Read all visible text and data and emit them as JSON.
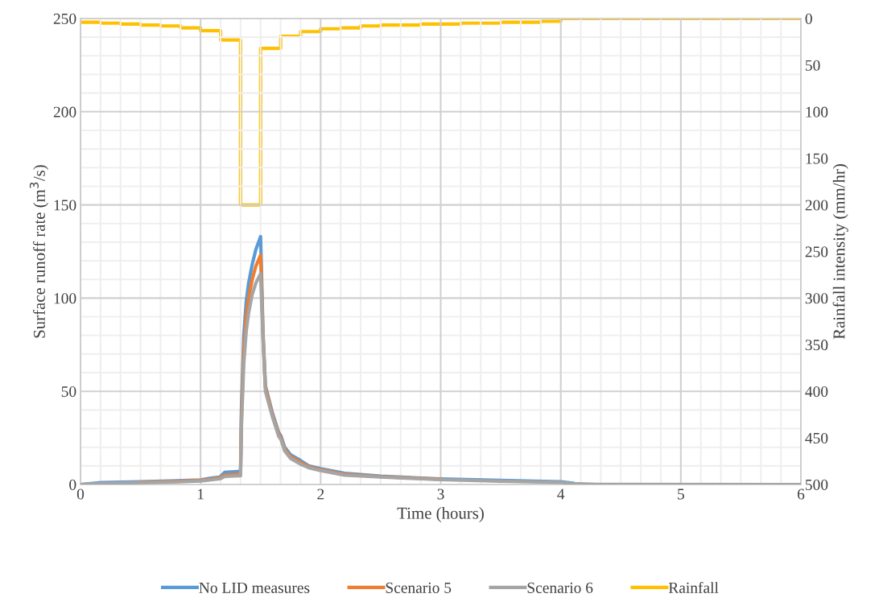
{
  "chart_data": {
    "type": "line",
    "xlabel": "Time (hours)",
    "ylabel": "Surface runoff rate (m$^{3}$/s)",
    "y2label": "Rainfall intensity (mm/hr)",
    "xlim": [
      0,
      6
    ],
    "xticks": [
      0,
      1,
      2,
      3,
      4,
      5,
      6
    ],
    "ylim": [
      0,
      250
    ],
    "yticks": [
      0,
      50,
      100,
      150,
      200,
      250
    ],
    "y2lim": [
      500,
      0
    ],
    "y2ticks": [
      0,
      50,
      100,
      150,
      200,
      250,
      300,
      350,
      400,
      450,
      500
    ],
    "grid": true,
    "legend": "bottom",
    "marker": "none",
    "line_style": "solid",
    "series": [
      {
        "name": "No LID measures",
        "color": "#5b9bd5",
        "x": [
          0,
          0.17,
          0.5,
          0.8,
          1.0,
          1.1,
          1.16,
          1.2,
          1.32,
          1.333,
          1.34,
          1.36,
          1.38,
          1.4,
          1.43,
          1.46,
          1.5,
          1.52,
          1.54,
          1.6,
          1.65,
          1.67,
          1.7,
          1.75,
          1.83,
          1.9,
          2.0,
          2.2,
          2.5,
          3.0,
          3.5,
          4.0,
          4.1
        ],
        "values": [
          0,
          1,
          1.5,
          2,
          2.5,
          3.5,
          4,
          6.5,
          7,
          7,
          40,
          80,
          98,
          108,
          118,
          126,
          133,
          82,
          53,
          38,
          28,
          26,
          20,
          16,
          13,
          10,
          8.5,
          6,
          4.5,
          3,
          2.2,
          1.5,
          0.7
        ]
      },
      {
        "name": "Scenario 5",
        "color": "#ed7d31",
        "x": [
          0.5,
          0.8,
          1.0,
          1.1,
          1.16,
          1.2,
          1.32,
          1.333,
          1.34,
          1.36,
          1.38,
          1.4,
          1.43,
          1.46,
          1.5,
          1.52,
          1.54,
          1.6,
          1.65,
          1.67,
          1.7,
          1.75,
          1.83,
          1.9,
          2.0,
          2.2,
          2.5,
          3.0
        ],
        "values": [
          1.3,
          1.7,
          2.2,
          3,
          3.5,
          5,
          5.5,
          5.5,
          35,
          72,
          90,
          100,
          110,
          117,
          123,
          80,
          52,
          37,
          27,
          25,
          19,
          15,
          12,
          9.5,
          8,
          5.5,
          4.2,
          2.8
        ]
      },
      {
        "name": "Scenario 6",
        "color": "#a5a5a5",
        "x": [
          0,
          0.17,
          0.5,
          0.8,
          1.0,
          1.1,
          1.16,
          1.2,
          1.32,
          1.333,
          1.34,
          1.36,
          1.38,
          1.4,
          1.43,
          1.46,
          1.5,
          1.52,
          1.54,
          1.6,
          1.65,
          1.67,
          1.7,
          1.75,
          1.83,
          1.9,
          2.0,
          2.2,
          2.5,
          3.0,
          3.5,
          4.0,
          4.1,
          4.3,
          6
        ],
        "values": [
          0,
          0.6,
          1,
          1.4,
          1.9,
          2.6,
          3,
          4.3,
          4.7,
          4.7,
          30,
          65,
          82,
          92,
          102,
          108,
          113,
          78,
          50,
          36,
          26,
          24,
          18,
          14,
          11,
          9,
          7.5,
          5,
          4,
          2.6,
          1.8,
          1.1,
          0.5,
          0.1,
          0
        ]
      },
      {
        "name": "Rainfall",
        "color": "#ffc000",
        "type": "step",
        "axis": "y2",
        "x": [
          0,
          0.167,
          0.333,
          0.5,
          0.667,
          0.833,
          1,
          1.167,
          1.333,
          1.5,
          1.667,
          1.833,
          2,
          2.167,
          2.333,
          2.5,
          2.667,
          2.833,
          3,
          3.167,
          3.333,
          3.5,
          3.667,
          3.833,
          4,
          6
        ],
        "values": [
          4,
          5,
          6,
          7,
          8,
          10,
          13,
          23,
          200,
          32,
          19,
          14,
          11,
          10,
          8,
          7,
          7,
          6,
          6,
          5,
          5,
          4,
          4,
          3,
          0,
          0
        ]
      }
    ]
  }
}
